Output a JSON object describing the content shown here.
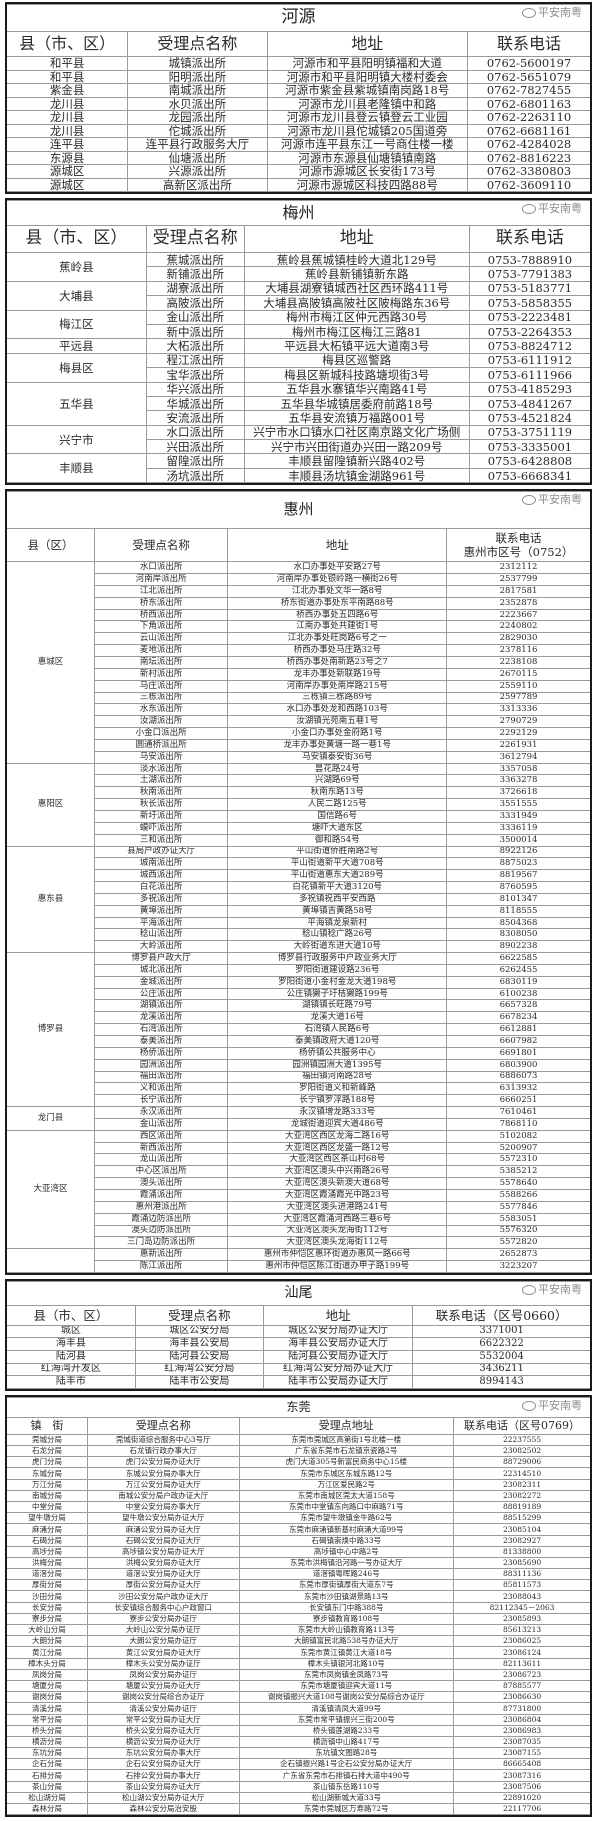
{
  "heyuan": {
    "title": "河源",
    "headers": [
      "县（市、区）",
      "受理点名称",
      "地址",
      "联系电话"
    ],
    "rows": [
      [
        "和平县",
        "城镇派出所",
        "河源市和平县阳明镇福和大道",
        "0762-5600197"
      ],
      [
        "和平县",
        "阳明派出所",
        "河源市和平县阳明镇大楼村委会",
        "0762-5651079"
      ],
      [
        "紫金县",
        "南城派出所",
        "河源市紫金县紫城镇南岗路18号",
        "0762-7827455"
      ],
      [
        "龙川县",
        "水贝派出所",
        "河源市龙川县老隆镇中和路",
        "0762-6801163"
      ],
      [
        "龙川县",
        "龙园派出所",
        "河源市龙川县登云镇登云工业园",
        "0762-2263110"
      ],
      [
        "龙川县",
        "佗城派出所",
        "河源市龙川县佗城镇205国道旁",
        "0762-6681161"
      ],
      [
        "连平县",
        "连平县行政服务大厅",
        "河源市连平县东江一号商住楼一楼",
        "0762-4284028"
      ],
      [
        "东源县",
        "仙塘派出所",
        "河源市东源县仙塘镇镇南路",
        "0762-8816223"
      ],
      [
        "源城区",
        "兴源派出所",
        "河源市源城区长安街173号",
        "0762-3380803"
      ],
      [
        "源城区",
        "高新区派出所",
        "河源市源城区科技四路88号",
        "0762-3609110"
      ]
    ]
  },
  "meizhou": {
    "title": "梅州",
    "headers": [
      "县（市、区）",
      "受理点名称",
      "地址",
      "联系电话"
    ],
    "groups": [
      {
        "county": "蕉岭县",
        "rows": [
          [
            "蕉城派出所",
            "蕉岭县蕉城镇桂岭大道北129号",
            "0753-7888910"
          ],
          [
            "新铺派出所",
            "蕉岭县新铺镇新东路",
            "0753-7791383"
          ]
        ]
      },
      {
        "county": "大埔县",
        "rows": [
          [
            "湖寮派出所",
            "大埔县湖寮镇城西社区西环路411号",
            "0753-5183771"
          ],
          [
            "高陂派出所",
            "大埔县高陂镇高陂社区陂梅路东36号",
            "0753-5858355"
          ]
        ]
      },
      {
        "county": "梅江区",
        "rows": [
          [
            "金山派出所",
            "梅州市梅江区仲元西路30号",
            "0753-2223481"
          ],
          [
            "新中派出所",
            "梅州市梅江区梅江三路81",
            "0753-2264353"
          ]
        ]
      },
      {
        "county": "平远县",
        "rows": [
          [
            "大柘派出所",
            "平远县大柘镇平远大道南3号",
            "0753-8824712"
          ]
        ]
      },
      {
        "county": "梅县区",
        "rows": [
          [
            "程江派出所",
            "梅县区巡警路",
            "0753-6111912"
          ],
          [
            "宝华派出所",
            "梅县区新城科技路塘坝街3号",
            "0753-6111966"
          ]
        ]
      },
      {
        "county": "五华县",
        "rows": [
          [
            "华兴派出所",
            "五华县水寨镇华兴南路41号",
            "0753-4185293"
          ],
          [
            "华城派出所",
            "五华县华城镇居委府前路18号",
            "0753-4841267"
          ],
          [
            "安流派出所",
            "五华县安流镇万福路001号",
            "0753-4521824"
          ]
        ]
      },
      {
        "county": "兴宁市",
        "rows": [
          [
            "水口派出所",
            "兴宁市水口镇水口社区南京路文化广场侧",
            "0753-3751119"
          ],
          [
            "兴田派出所",
            "兴宁市兴田街道办兴田一路209号",
            "0753-3335001"
          ]
        ]
      },
      {
        "county": "丰顺县",
        "rows": [
          [
            "留隍派出所",
            "丰顺县留隍镇新兴路402号",
            "0753-6428808"
          ],
          [
            "汤坑派出所",
            "丰顺县汤坑镇金湖路961号",
            "0753-6668341"
          ]
        ]
      }
    ]
  },
  "huizhou": {
    "title": "惠州",
    "headers": [
      "县（区）",
      "受理点名称",
      "地址",
      "联系电话"
    ],
    "phone_sub": "惠州市区号（0752）",
    "groups": [
      {
        "county": "惠城区",
        "rows": [
          [
            "水口派出所",
            "水口办事处平安路27号",
            "2312112"
          ],
          [
            "河南岸派出所",
            "河南岸办事处银岭路一横街26号",
            "2537799"
          ],
          [
            "江北派出所",
            "江北办事处文华一路8号",
            "2817581"
          ],
          [
            "桥东派出所",
            "桥东街道办事处东平南路88号",
            "2352878"
          ],
          [
            "桥西派出所",
            "桥西办事处五四路6号",
            "2223667"
          ],
          [
            "下角派出所",
            "江南办事处共建街1号",
            "2240802"
          ],
          [
            "云山派出所",
            "江北办事处旺岗路6号之一",
            "2829030"
          ],
          [
            "麦地派出所",
            "桥西办事处马庄路32号",
            "2378116"
          ],
          [
            "南坛派出所",
            "桥西办事处南新路23号之7",
            "2238108"
          ],
          [
            "新村派出所",
            "龙丰办事处新联路19号",
            "2670115"
          ],
          [
            "马庄派出所",
            "河南岸办事处南岸路215号",
            "2559110"
          ],
          [
            "三栋派出所",
            "三栋镇三栋路89号",
            "2597789"
          ],
          [
            "水东派出所",
            "水口办事处龙和西路103号",
            "3313336"
          ],
          [
            "汝湖派出所",
            "汝湖镇光苑南五巷1号",
            "2790729"
          ],
          [
            "小金口派出所",
            "小金口办事处金府路1号",
            "2292129"
          ],
          [
            "圆通桥派出所",
            "龙丰办事处黄塘一路一巷1号",
            "2261931"
          ],
          [
            "马安派出所",
            "马安镇泰安街36号",
            "3612794"
          ]
        ]
      },
      {
        "county": "惠阳区",
        "rows": [
          [
            "淡水派出所",
            "昙花路24号",
            "3357058"
          ],
          [
            "土湖派出所",
            "兴湖路69号",
            "3363278"
          ],
          [
            "秋南派出所",
            "秋南东路13号",
            "3726618"
          ],
          [
            "秋长派出所",
            "人民二路125号",
            "3551555"
          ],
          [
            "新圩派出所",
            "国信路6号",
            "3331949"
          ],
          [
            "蟆吓派出所",
            "塘吓大道东区",
            "3336119"
          ],
          [
            "三和派出所",
            "御和路54号",
            "3500014"
          ]
        ]
      },
      {
        "county": "惠东县",
        "rows": [
          [
            "县局户政办证大厅",
            "平山街道侨胜南路2号",
            "8922126"
          ],
          [
            "城南派出所",
            "平山街道新平大道708号",
            "8875023"
          ],
          [
            "城西派出所",
            "平山街道惠东大道289号",
            "8819567"
          ],
          [
            "白花派出所",
            "白花镇新平大道3120号",
            "8760595"
          ],
          [
            "多祝派出所",
            "多祝镇祝西平安西路",
            "8101347"
          ],
          [
            "黄埠派出所",
            "黄埠镇吉黄路58号",
            "8118555"
          ],
          [
            "平海派出所",
            "平海镇龙泉新村",
            "8504368"
          ],
          [
            "稔山派出所",
            "稔山镇稔广路26号",
            "8308050"
          ],
          [
            "大岭派出所",
            "大岭街道东进大道10号",
            "8902238"
          ]
        ]
      },
      {
        "county": "博罗县",
        "rows": [
          [
            "博罗县户政大厅",
            "博罗县行政服务中户政业务大厅",
            "6622585"
          ],
          [
            "城北派出所",
            "罗阳街道建设路236号",
            "6262455"
          ],
          [
            "金城派出所",
            "罗阳街道小金村金龙大道198号",
            "6830119"
          ],
          [
            "公庄派出所",
            "公庄镇獭子圩桔獭路199号",
            "6100238"
          ],
          [
            "湖镇派出所",
            "湖镇镇长旺路79号",
            "6657328"
          ],
          [
            "龙溪派出所",
            "龙溪大道16号",
            "6678234"
          ],
          [
            "石湾派出所",
            "石湾镇人民路6号",
            "6612881"
          ],
          [
            "泰美派出所",
            "泰美镇政府大道120号",
            "6607982"
          ],
          [
            "杨侨派出所",
            "杨侨镇公共服务中心",
            "6691801"
          ],
          [
            "园洲派出所",
            "园洲镇园洲大道1395号",
            "6803900"
          ],
          [
            "福田派出所",
            "福田镇河南路28号",
            "6886073"
          ],
          [
            "义和派出所",
            "罗阳街道义和新峰路",
            "6313932"
          ],
          [
            "长宁派出所",
            "长宁镇罗浮路188号",
            "6660251"
          ]
        ]
      },
      {
        "county": "龙门县",
        "rows": [
          [
            "永汉派出所",
            "永汉镇增龙路333号",
            "7610461"
          ],
          [
            "金山派出所",
            "龙城街道迎宾大道486号",
            "7868110"
          ]
        ]
      },
      {
        "county": "大亚湾区",
        "rows": [
          [
            "西区派出所",
            "大亚湾区西区龙海二路16号",
            "5102082"
          ],
          [
            "新西派出所",
            "大亚湾区西区龙盛一路12号",
            "5200907"
          ],
          [
            "龙山派出所",
            "大亚湾区西区茶山村68号",
            "5572310"
          ],
          [
            "中心区派出所",
            "大亚湾区澳头中兴南路26号",
            "5385212"
          ],
          [
            "澳头派出所",
            "大亚湾区澳头新澳大道68号",
            "5578640"
          ],
          [
            "霞涌派出所",
            "大亚湾区霞涌霞光中路23号",
            "5588266"
          ],
          [
            "惠州港派出所",
            "大亚湾区澳头进港路241号",
            "5577846"
          ],
          [
            "霞涌边防派出所",
            "大亚湾区霞涌河西路三巷6号",
            "5583051"
          ],
          [
            "澳头边防派出所",
            "大亚湾区澳头龙海街112号",
            "5576320"
          ],
          [
            "三门岛边防派出所",
            "大亚湾区澳头龙海街112号",
            "5572820"
          ]
        ]
      },
      {
        "county": "",
        "rows": [
          [
            "惠新派出所",
            "惠州市仲恺区惠环街道办惠风一路66号",
            "2652873"
          ],
          [
            "陈江派出所",
            "惠州市仲恺区陈江街道办甲子路199号",
            "3223207"
          ]
        ]
      }
    ]
  },
  "shanwei": {
    "title": "汕尾",
    "headers": [
      "县（市、区）",
      "受理点名称",
      "地址",
      "联系电话（区号0660）"
    ],
    "rows": [
      [
        "城区",
        "城区公安分局",
        "城区公安分局办证大厅",
        "3371001"
      ],
      [
        "海丰县",
        "海丰县公安局",
        "海丰县公安局办证大厅",
        "6622322"
      ],
      [
        "陆河县",
        "陆河县公安局",
        "陆河县公安局办证大厅",
        "5532004"
      ],
      [
        "红海湾开发区",
        "红海湾公安分局",
        "红海湾公安分局办证大厅",
        "3436211"
      ],
      [
        "陆丰市",
        "陆丰市公安局",
        "陆丰市公安局办证大厅",
        "8994143"
      ]
    ]
  },
  "dongguan": {
    "title": "东莞",
    "headers": [
      "镇　街",
      "受理点名称",
      "受理点地址",
      "联系电话（区号0769）"
    ],
    "rows": [
      [
        "莞城分局",
        "莞城街道综合服务中心3号厅",
        "东莞市莞城区高第街1号北楼一楼",
        "22237555"
      ],
      [
        "石龙分局",
        "石龙镇行政办事大厅",
        "广东省东莞市石龙镇京瓷路2号",
        "23082502"
      ],
      [
        "虎门分局",
        "虎门公安分局办证大厅",
        "虎门大道305号新富民商务中心15楼",
        "88729006"
      ],
      [
        "东城分局",
        "东城公安分局办事大厅",
        "东莞市东城区东城东路12号",
        "22314510"
      ],
      [
        "万江分局",
        "万江公安分局办证大厅",
        "万江区爱民路2号",
        "23082311"
      ],
      [
        "南城分局",
        "南城公安分局户政办证大厅",
        "东莞市南城区莞太大道158号",
        "23082272"
      ],
      [
        "中堂分局",
        "中堂公安分局办事大厅",
        "东莞市中堂镇东向路口中麻路71号",
        "88819189"
      ],
      [
        "望牛墩分局",
        "望牛墩公安分局办证大厅",
        "东莞市望牛墩镇金牛路62号",
        "88515299"
      ],
      [
        "麻涌分局",
        "麻涌公安分局办证大厅",
        "东莞市麻涌镇新基村麻涌大道99号",
        "23085104"
      ],
      [
        "石碣分局",
        "石碣公安分局办证大厅",
        "石碣镇崇焕中路33号",
        "23082927"
      ],
      [
        "高埗分局",
        "高埗镇公安分局办证大厅",
        "高埗镇中心中路2号",
        "81338800"
      ],
      [
        "洪梅分局",
        "洪梅公安分局办证大厅",
        "东莞市洪梅镇沿河路一号办证大厅",
        "23085690"
      ],
      [
        "道滘分局",
        "道滘公安分局办证大厅",
        "道滘镇粤晖路246号",
        "88311136"
      ],
      [
        "厚街分局",
        "厚街公安分局办证大厅",
        "东莞市厚街镇厚街大道东7号",
        "85811573"
      ],
      [
        "沙田分局",
        "沙田公安分局户政办证大厅",
        "东莞市沙田镇湖景路13号",
        "23088043"
      ],
      [
        "长安分局",
        "长安镇综合服务中心户政窗口",
        "长安镇东门中路388号",
        "82112345－2063"
      ],
      [
        "寮步分局",
        "寮步公安分局办证厅",
        "寮步镇教育路108号",
        "23085893"
      ],
      [
        "大岭山分局",
        "大岭山公安分局办证厅",
        "东莞市大岭山镇教育路113号",
        "85613213"
      ],
      [
        "大朗分局",
        "大朗公安分局办证厅",
        "大朗镇富民北路538号办证大厅",
        "23086025"
      ],
      [
        "黄江分局",
        "黄江公安分局办证大厅",
        "东莞市黄江镇黄江大道18号",
        "23086124"
      ],
      [
        "樟木头分局",
        "樟木头公安分局办证厅",
        "樟木头镇银河北路10号",
        "82113611"
      ],
      [
        "凤岗分局",
        "凤岗公安分局办证厅",
        "东莞市凤岗镇金凤路73号",
        "23086723"
      ],
      [
        "塘厦分局",
        "塘厦公安分局办证大厅",
        "东莞市塘厦镇迎宾大道11号",
        "87885577"
      ],
      [
        "谢岗分局",
        "谢岗公安分局综合办证厅",
        "谢岗镇振兴大道108号谢岗公安分局综合办证厅",
        "23086630"
      ],
      [
        "清溪分局",
        "清溪公安分局办证厅",
        "清溪镇清凤大道99号",
        "87731800"
      ],
      [
        "常平分局",
        "常平公安分局办证大厅",
        "东莞市常平镇振兴三街200号",
        "23086804"
      ],
      [
        "桥头分局",
        "桥头公安分局办证大厅",
        "桥头镇莲湖路233号",
        "23086983"
      ],
      [
        "横沥分局",
        "横沥公安分局办证大厅",
        "横沥镇中山路417号",
        "23087035"
      ],
      [
        "东坑分局",
        "东坑公安分局办事大厅",
        "东坑镇文图路28号",
        "23087155"
      ],
      [
        "企石分局",
        "企石公安分局办证大厅",
        "企石镇振兴路1号企石公安分局办证大厅",
        "86665408"
      ],
      [
        "石排分局",
        "石排公安分局办事大厅",
        "广东省东莞市石排镇石排大道中490号",
        "23087316"
      ],
      [
        "茶山分局",
        "茶山公安分局办证大厅",
        "茶山镇东岳路110号",
        "23087506"
      ],
      [
        "松山湖分局",
        "松山湖公安分局办证大厅",
        "松山湖新城大道33号",
        "22891020"
      ],
      [
        "森林分局",
        "森林公安分局治安股",
        "东莞市莞城区万寿路72号",
        "22117706"
      ]
    ]
  },
  "watermark": {
    "text": "平安南粤"
  }
}
